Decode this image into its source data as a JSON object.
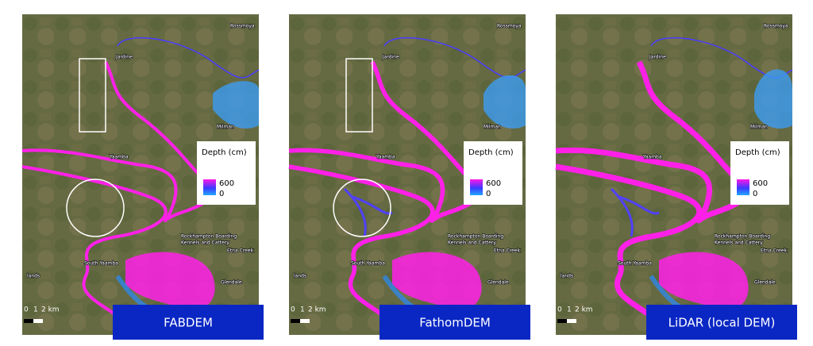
{
  "panels": [
    {
      "label": "FABDEM"
    },
    {
      "label": "FathomDEM"
    },
    {
      "label": "LiDAR (local DEM)"
    }
  ],
  "legend": {
    "title": "Depth (cm)",
    "max": "600",
    "min": "0"
  },
  "scale": {
    "ticks": [
      "0",
      "1",
      "2 km"
    ]
  },
  "places": {
    "rossmoya": "Rossmoya",
    "jardine": "Jardine",
    "milman": "Milman",
    "yaamba": "Yaamba",
    "kennels_1": "Rockhampton Boarding",
    "kennels_2": "Kennels and Cattery",
    "etna": "Etna Creek",
    "glendale": "Glendale",
    "south_yaamba": "South Yaamba",
    "lands": "lands"
  }
}
